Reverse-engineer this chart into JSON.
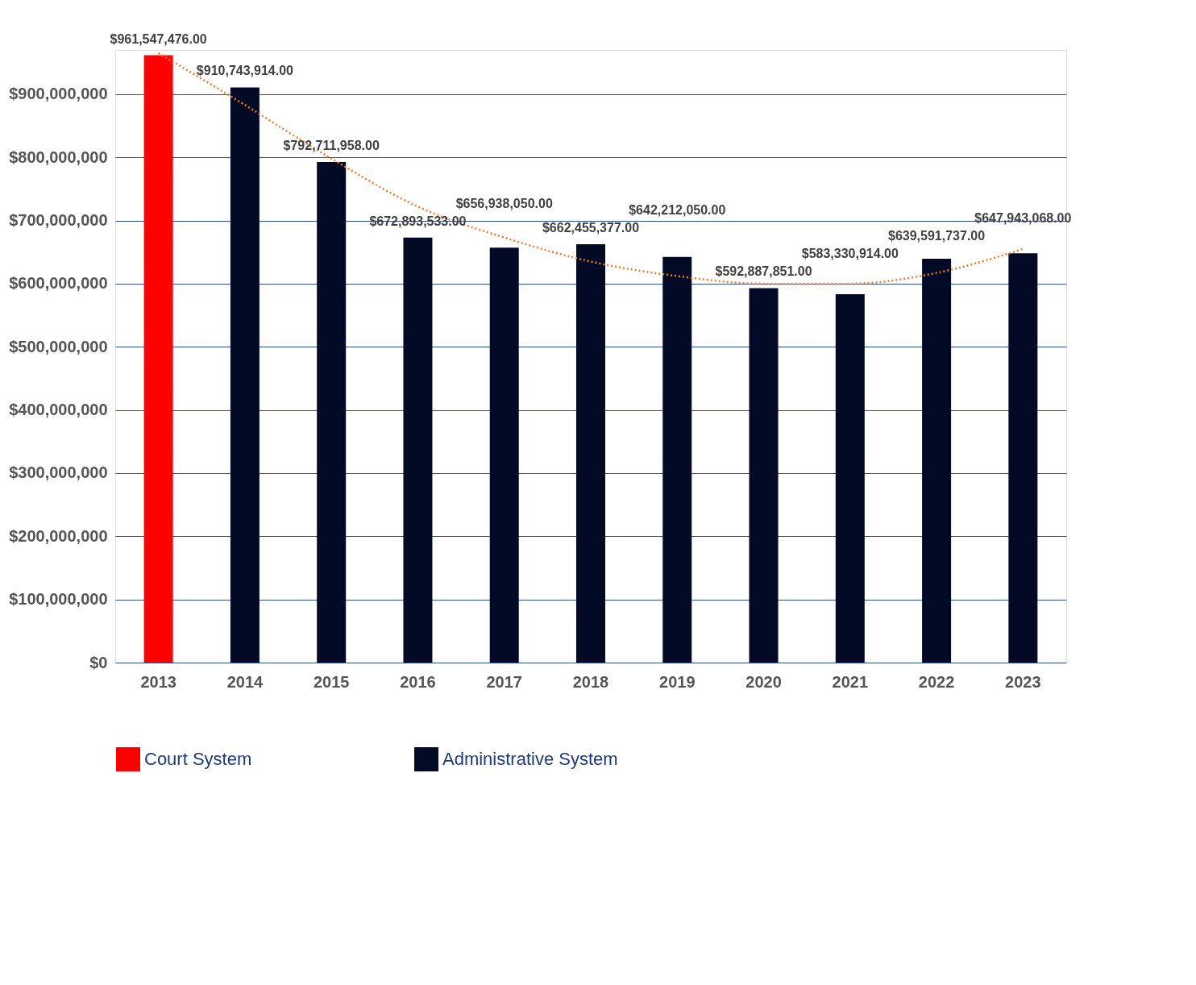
{
  "chart_data": {
    "type": "bar",
    "categories": [
      "2013",
      "2014",
      "2015",
      "2016",
      "2017",
      "2018",
      "2019",
      "2020",
      "2021",
      "2022",
      "2023"
    ],
    "series": [
      {
        "name": "Court System",
        "color": "#ff0000",
        "values": [
          961547476,
          null,
          null,
          null,
          null,
          null,
          null,
          null,
          null,
          null,
          null
        ],
        "value_labels": [
          "$961,547,476.00",
          null,
          null,
          null,
          null,
          null,
          null,
          null,
          null,
          null,
          null
        ]
      },
      {
        "name": "Administrative System",
        "color": "#030a26",
        "values": [
          null,
          910743914,
          792711958,
          672893533,
          656938050,
          662455377,
          642212050,
          592887851,
          583330914,
          639591737,
          647943068
        ],
        "value_labels": [
          null,
          "$910,743,914.00",
          "$792,711,958.00",
          "$672,893,533.00",
          "$656,938,050.00",
          "$662,455,377.00",
          "$642,212,050.00",
          "$592,887,851.00",
          "$583,330,914.00",
          "$639,591,737.00",
          "$647,943,068.00"
        ]
      },
      {
        "type": "line",
        "color": "#ed7d31",
        "line_style": "dotted",
        "marker": "none",
        "values": [
          965000000,
          883000000,
          798000000,
          722000000,
          673000000,
          635000000,
          612000000,
          600000000,
          600000000,
          617000000,
          655000000
        ]
      }
    ],
    "ylim": [
      0,
      970000000
    ],
    "yticks": [
      {
        "value": 0,
        "label": "$0"
      },
      {
        "value": 100000000,
        "label": "$100,000,000"
      },
      {
        "value": 200000000,
        "label": "$200,000,000"
      },
      {
        "value": 300000000,
        "label": "$300,000,000"
      },
      {
        "value": 400000000,
        "label": "$400,000,000"
      },
      {
        "value": 500000000,
        "label": "$500,000,000"
      },
      {
        "value": 600000000,
        "label": "$600,000,000"
      },
      {
        "value": 700000000,
        "label": "$700,000,000"
      },
      {
        "value": 800000000,
        "label": "$800,000,000"
      },
      {
        "value": 900000000,
        "label": "$900,000,000"
      }
    ],
    "grid": "y",
    "legend": "bottom"
  }
}
